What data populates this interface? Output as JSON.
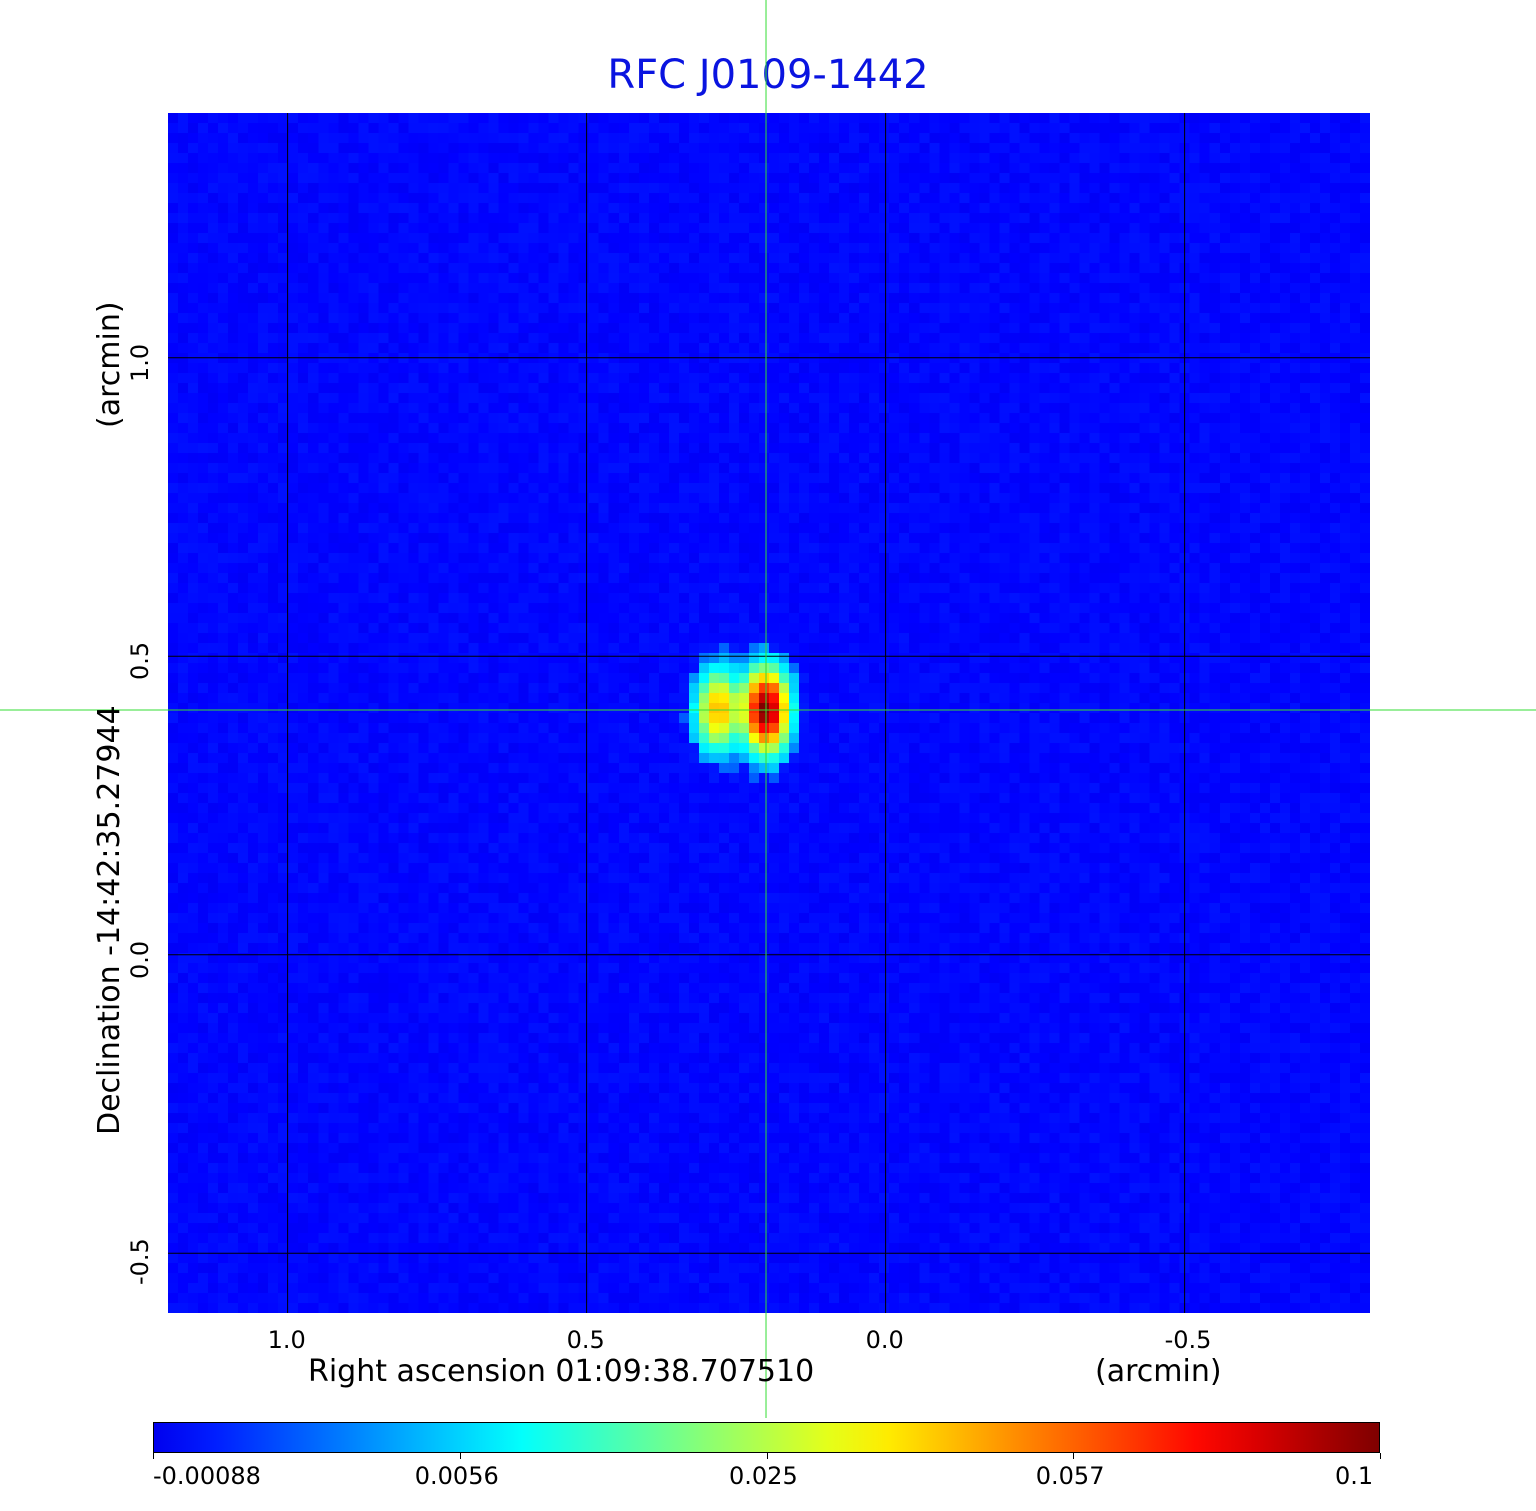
{
  "chart_data": {
    "type": "heatmap",
    "title": "RFC J0109-1442",
    "xlabel": "Right ascension  01:09:38.707510",
    "xunit": "(arcmin)",
    "ylabel": "Declination  -14:42:35.27944",
    "yunit": "(arcmin)",
    "xlim": [
      1.2,
      -0.81
    ],
    "ylim": [
      -0.6,
      1.41
    ],
    "xticks": [
      "1.0",
      "0.5",
      "0.0",
      "-0.5"
    ],
    "xtick_values": [
      1.0,
      0.5,
      0.0,
      -0.5
    ],
    "yticks": [
      "1.0",
      "0.5",
      "0.0",
      "-0.5"
    ],
    "ytick_values": [
      1.0,
      0.5,
      0.0,
      -0.5
    ],
    "grid": true,
    "colormap": "jet",
    "colorbar": {
      "ticks": [
        "-0.00088",
        "0.0056",
        "0.025",
        "0.057",
        "0.1"
      ],
      "range": [
        -0.00088,
        0.1
      ],
      "placement": "bottom"
    },
    "crosshair": {
      "x": 0.2,
      "y": 0.41,
      "color": "#33dd33"
    },
    "sources": [
      {
        "x": 0.28,
        "y": 0.41,
        "peak": 0.045
      },
      {
        "x": 0.2,
        "y": 0.41,
        "peak": 0.1
      }
    ],
    "background_level": 0.0
  }
}
